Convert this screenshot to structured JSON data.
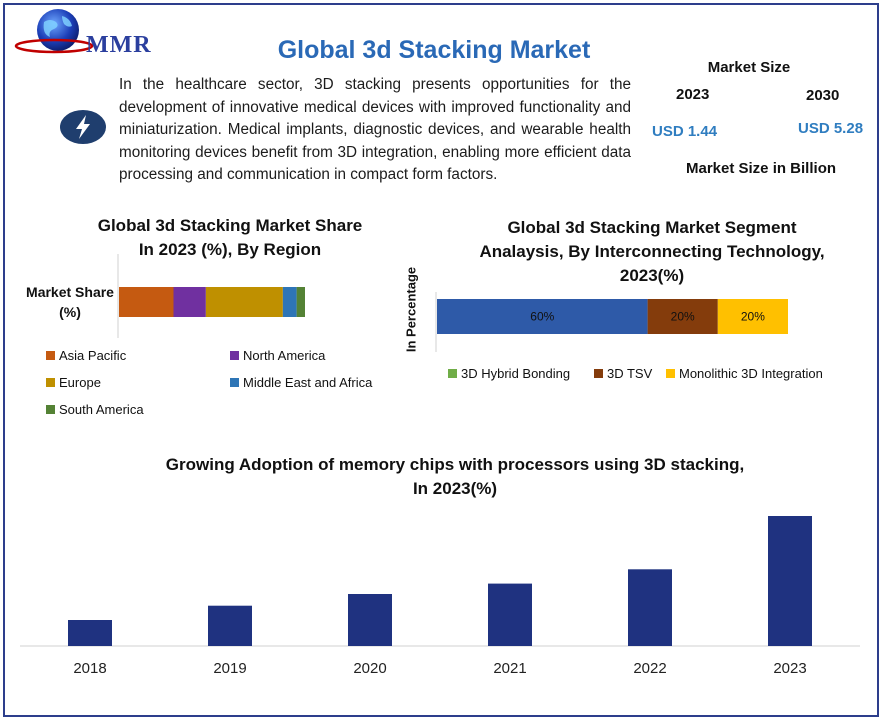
{
  "brand": {
    "name": "MMR",
    "colors": {
      "primary": "#2b3f9e",
      "accent": "#2a69b6",
      "value": "#2f7dc0",
      "border": "#2d3e8c"
    }
  },
  "header": {
    "title": "Global 3d Stacking Market",
    "intro": "In the healthcare sector, 3D stacking presents opportunities for the development of innovative medical devices with improved functionality and miniaturization. Medical implants, diagnostic devices, and wearable health monitoring devices benefit from 3D integration, enabling more efficient data processing and communication in compact form factors.",
    "icon": "lightning-bolt-icon"
  },
  "market_size": {
    "title": "Market Size",
    "year_start": "2023",
    "year_end": "2030",
    "value_start": "USD 1.44",
    "value_end": "USD 5.28",
    "footer": "Market Size in Billion"
  },
  "chart_data": [
    {
      "type": "bar",
      "orientation": "horizontal-stacked",
      "title": "Global 3d Stacking Market Share\nIn 2023 (%), By Region",
      "ylabel": "Market Share (%)",
      "categories": [
        "Market Share (%)"
      ],
      "series": [
        {
          "name": "Asia Pacific",
          "values": [
            29.3
          ],
          "color": "#c55a11"
        },
        {
          "name": "North America",
          "values": [
            17.4
          ],
          "color": "#7030a0"
        },
        {
          "name": "Europe",
          "values": [
            41.4
          ],
          "color": "#bf9000"
        },
        {
          "name": "Middle East and Africa",
          "values": [
            7.4
          ],
          "color": "#2e75b6"
        },
        {
          "name": "South America",
          "values": [
            4.5
          ],
          "color": "#548235"
        }
      ],
      "legend": "bottom"
    },
    {
      "type": "bar",
      "orientation": "horizontal-stacked",
      "title": "Global 3d Stacking Market Segment\nAnalaysis, By Interconnecting Technology,\n2023(%)",
      "ylabel": "In Percentage",
      "categories": [
        ""
      ],
      "series": [
        {
          "name": "3D Hybrid Bonding",
          "values": [
            60
          ],
          "label": "60%",
          "color": "#2e5aa8"
        },
        {
          "name": "3D TSV",
          "values": [
            20
          ],
          "label": "20%",
          "color": "#843c0c"
        },
        {
          "name": "Monolithic 3D Integration",
          "values": [
            20
          ],
          "label": "20%",
          "color": "#ffc000"
        }
      ],
      "legend_colors": [
        "#70ad47",
        "#843c0c",
        "#ffc000"
      ],
      "legend": "bottom"
    },
    {
      "type": "bar",
      "title": "Growing Adoption of memory chips with processors using 3D stacking,\nIn 2023(%)",
      "categories": [
        "2018",
        "2019",
        "2020",
        "2021",
        "2022",
        "2023"
      ],
      "values": [
        20,
        31,
        40,
        48,
        59,
        100
      ],
      "ylim": [
        0,
        100
      ],
      "grid": false,
      "color": "#1f3280"
    }
  ]
}
